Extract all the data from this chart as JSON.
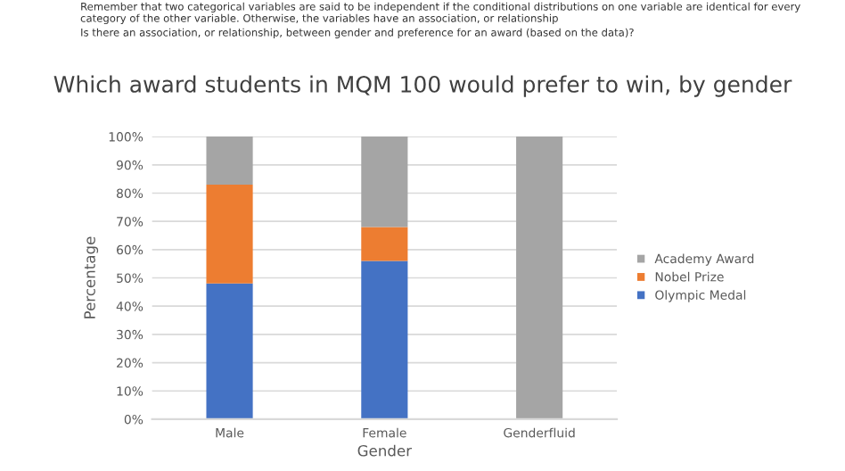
{
  "chart_data": {
    "type": "bar",
    "stacked": true,
    "title": "Which award students in MQM 100 would prefer to win, by gender",
    "xlabel": "Gender",
    "ylabel": "Percentage",
    "annotations": [
      "Remember that two categorical variables are said to be independent if the conditional distributions on one variable are identical for every category of the other variable. Otherwise, the variables have an association, or relationship",
      "Is there an association, or relationship, between gender and preference for an award (based on the data)?"
    ],
    "categories": [
      "Male",
      "Female",
      "Genderfluid"
    ],
    "series": [
      {
        "name": "Olympic Medal",
        "color": "#4472c4",
        "values": [
          48,
          56,
          0
        ]
      },
      {
        "name": "Nobel Prize",
        "color": "#ed7d31",
        "values": [
          35,
          12,
          0
        ]
      },
      {
        "name": "Academy Award",
        "color": "#a5a5a5",
        "values": [
          17,
          32,
          100
        ]
      }
    ],
    "ylim": [
      0,
      100
    ],
    "yticks": [
      {
        "value": 0,
        "label": "0%"
      },
      {
        "value": 10,
        "label": "10%"
      },
      {
        "value": 20,
        "label": "20%"
      },
      {
        "value": 30,
        "label": "30%"
      },
      {
        "value": 40,
        "label": "40%"
      },
      {
        "value": 50,
        "label": "50%"
      },
      {
        "value": 60,
        "label": "60%"
      },
      {
        "value": 70,
        "label": "70%"
      },
      {
        "value": 80,
        "label": "80%"
      },
      {
        "value": 90,
        "label": "90%"
      },
      {
        "value": 100,
        "label": "100%"
      }
    ],
    "grid": "y",
    "legend": "right"
  }
}
